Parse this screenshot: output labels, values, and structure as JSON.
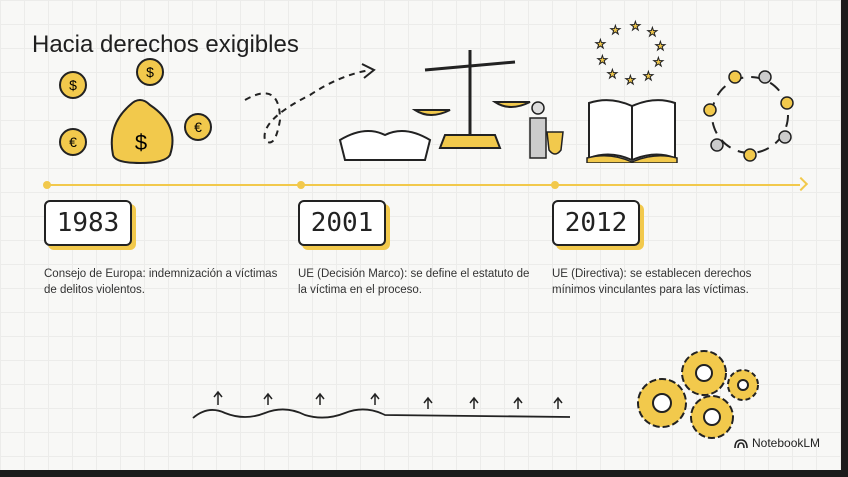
{
  "title": "Hacia derechos exigibles",
  "events": [
    {
      "year": "1983",
      "text": "Consejo de Europa: indemnización a víctimas de delitos violentos."
    },
    {
      "year": "2001",
      "text": "UE (Decisión Marco): se define el estatuto de la víctima en el proceso."
    },
    {
      "year": "2012",
      "text": "UE (Directiva): se establecen derechos mínimos vinculantes para las víctimas."
    }
  ],
  "brand": "NotebookLM",
  "colors": {
    "accent": "#f2c94c",
    "ink": "#222222"
  }
}
